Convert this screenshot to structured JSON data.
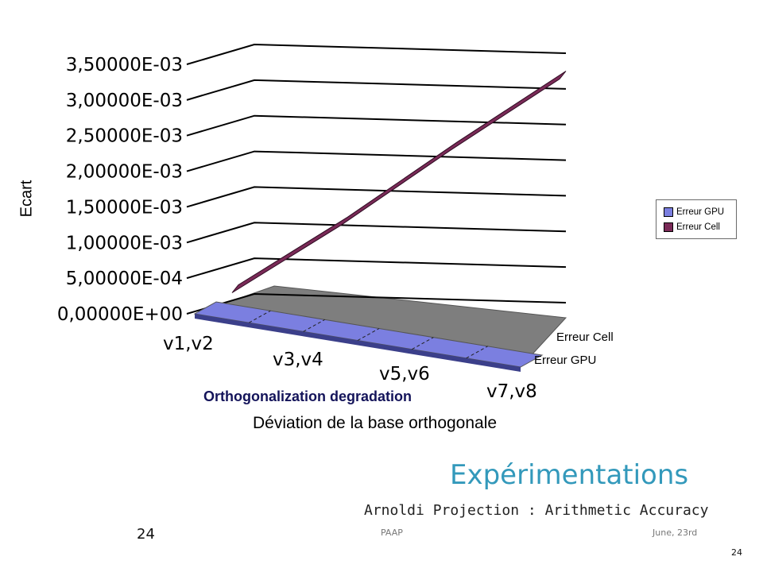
{
  "chart_data": {
    "type": "area",
    "categories": [
      "v1,v2",
      "v3,v4",
      "v5,v6",
      "v7,v8"
    ],
    "series": [
      {
        "name": "Erreur GPU",
        "values": [
          0,
          0,
          0,
          0
        ]
      },
      {
        "name": "Erreur Cell",
        "values": [
          0.00015,
          0.0012,
          0.00235,
          0.00345
        ]
      }
    ],
    "y_ticks": [
      "0,00000E+00",
      "5,00000E-04",
      "1,00000E-03",
      "1,50000E-03",
      "2,00000E-03",
      "2,50000E-03",
      "3,00000E-03",
      "3,50000E-03"
    ],
    "ylim": [
      0,
      0.0035
    ],
    "ylabel": "Ecart",
    "xlabel": "Déviation de la base orthogonale",
    "subtitle": "Orthogonalization degradation",
    "depth_labels": [
      "Erreur Cell",
      "Erreur GPU"
    ],
    "legend": {
      "position": "right",
      "entries": [
        "Erreur GPU",
        "Erreur Cell"
      ]
    },
    "colors": {
      "gpu": "#7b7fe0",
      "cell": "#7a2a57",
      "floor": "#7e7e7e",
      "grid": "#000000"
    },
    "grid": true
  },
  "slide": {
    "title": "Expérimentations",
    "subtitle": "Arnoldi Projection : Arithmetic Accuracy",
    "footer_number": "24",
    "footer_left": "PAAP",
    "footer_right": "June, 23rd",
    "page_number": "24"
  }
}
